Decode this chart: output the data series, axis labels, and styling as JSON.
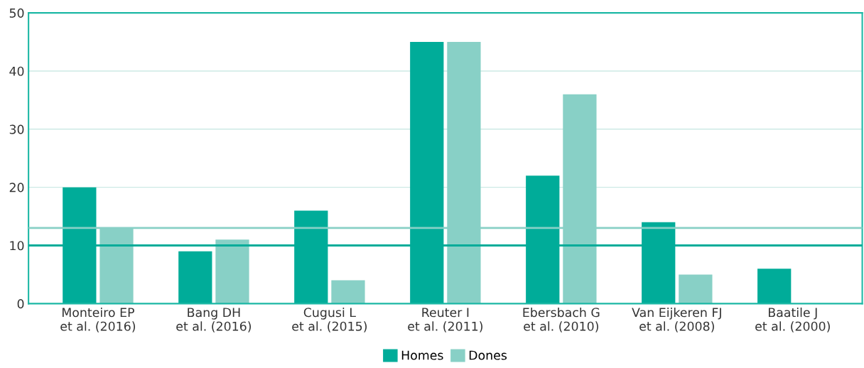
{
  "chart_data": {
    "type": "bar",
    "categories": [
      "Monteiro EP\net al. (2016)",
      "Bang DH\net al. (2016)",
      "Cugusi L\net al. (2015)",
      "Reuter I\net al. (2011)",
      "Ebersbach G\net al. (2010)",
      "Van Eijkeren FJ\net al. (2008)",
      "Baatile J\net al. (2000)"
    ],
    "series": [
      {
        "name": "Homes",
        "color": "#00ac99",
        "values": [
          20,
          9,
          16,
          45,
          22,
          14,
          6
        ]
      },
      {
        "name": "Dones",
        "color": "#88d0c6",
        "values": [
          13,
          11,
          4,
          45,
          36,
          5,
          null
        ]
      }
    ],
    "ylim": [
      0,
      50
    ],
    "yticks": [
      0,
      10,
      20,
      30,
      40,
      50
    ],
    "ref_lines": [
      {
        "axis": "y",
        "value": 10,
        "color": "#00ac99"
      },
      {
        "axis": "y",
        "value": 13,
        "color": "#88d0c6"
      }
    ],
    "grid": "y",
    "legend": "bottom"
  }
}
